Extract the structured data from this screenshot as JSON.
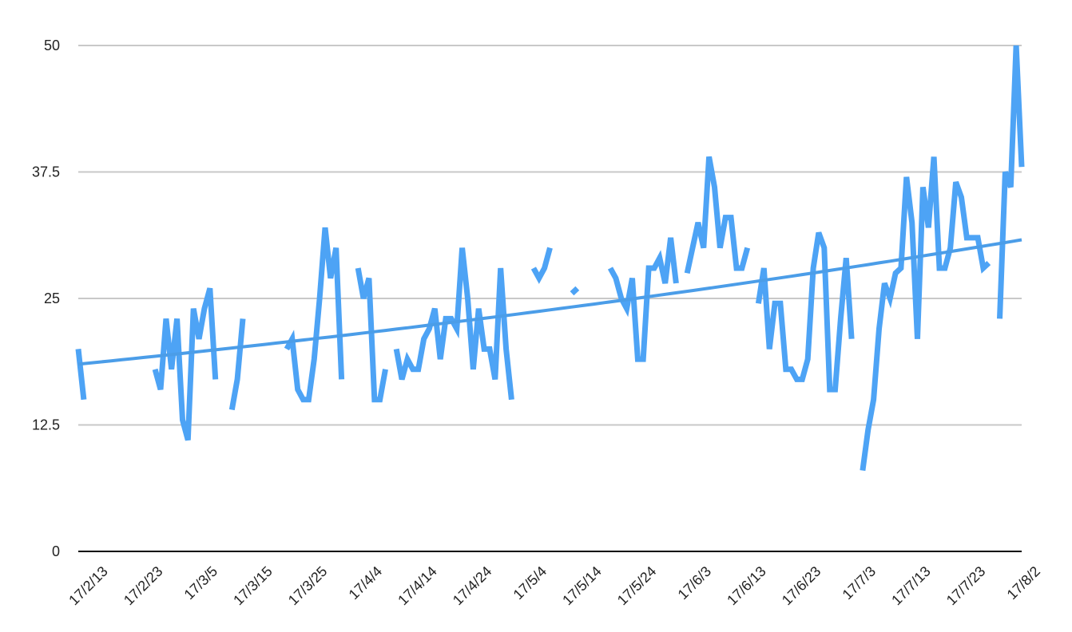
{
  "chart_data": {
    "type": "line",
    "title": "",
    "xlabel": "",
    "ylabel": "",
    "ylim": [
      0,
      50
    ],
    "xlim_days": [
      0,
      171
    ],
    "yticks": [
      "0",
      "12.5",
      "25",
      "37.5",
      "50"
    ],
    "xticks": [
      "17/2/13",
      "17/2/23",
      "17/3/5",
      "17/3/15",
      "17/3/25",
      "17/4/4",
      "17/4/14",
      "17/4/24",
      "17/5/4",
      "17/5/14",
      "17/5/24",
      "17/6/3",
      "17/6/13",
      "17/6/23",
      "17/7/3",
      "17/7/13",
      "17/7/23",
      "17/8/2"
    ],
    "grid": true,
    "legend": "none",
    "colors": {
      "series": "#4da3f5",
      "trend": "#4b9de8",
      "grid": "#c8c8c8",
      "axis": "#000000"
    },
    "series": [
      {
        "segments": [
          [
            [
              0,
              20
            ],
            [
              1,
              15
            ]
          ],
          [
            [
              14,
              18
            ],
            [
              15,
              16
            ],
            [
              16,
              23
            ],
            [
              17,
              18
            ],
            [
              18,
              23
            ],
            [
              19,
              13
            ],
            [
              20,
              11
            ],
            [
              21,
              24
            ],
            [
              22,
              21
            ],
            [
              23,
              24
            ],
            [
              24,
              26
            ],
            [
              25,
              17
            ]
          ],
          [
            [
              28,
              14
            ],
            [
              29,
              17
            ],
            [
              30,
              23
            ]
          ],
          [
            [
              38,
              20
            ],
            [
              39,
              21
            ],
            [
              40,
              16
            ],
            [
              41,
              15
            ],
            [
              42,
              15
            ],
            [
              43,
              19
            ],
            [
              44,
              25
            ],
            [
              45,
              32
            ],
            [
              46,
              27
            ],
            [
              47,
              30
            ],
            [
              48,
              17
            ]
          ],
          [
            [
              51,
              28
            ],
            [
              52,
              25
            ],
            [
              53,
              27
            ],
            [
              54,
              15
            ],
            [
              55,
              15
            ],
            [
              56,
              18
            ]
          ],
          [
            [
              58,
              20
            ],
            [
              59,
              17
            ],
            [
              60,
              19
            ],
            [
              61,
              18
            ],
            [
              62,
              18
            ],
            [
              63,
              21
            ],
            [
              64,
              22
            ],
            [
              65,
              24
            ],
            [
              66,
              19
            ],
            [
              67,
              23
            ],
            [
              68,
              23
            ],
            [
              69,
              22
            ],
            [
              70,
              30
            ],
            [
              71,
              25
            ],
            [
              72,
              18
            ],
            [
              73,
              24
            ],
            [
              74,
              20
            ],
            [
              75,
              20
            ],
            [
              76,
              17
            ],
            [
              77,
              28
            ],
            [
              78,
              20
            ],
            [
              79,
              15
            ]
          ],
          [
            [
              83,
              28
            ],
            [
              84,
              27
            ],
            [
              85,
              28
            ],
            [
              86,
              30
            ]
          ],
          [
            [
              90,
              25.5
            ],
            [
              91,
              26
            ]
          ],
          [
            [
              97,
              28
            ],
            [
              98,
              27
            ],
            [
              99,
              25
            ],
            [
              100,
              24
            ],
            [
              101,
              27
            ],
            [
              102,
              19
            ],
            [
              103,
              19
            ],
            [
              104,
              28
            ],
            [
              105,
              28
            ],
            [
              106,
              29
            ],
            [
              107,
              26.5
            ],
            [
              108,
              31
            ],
            [
              109,
              26.5
            ]
          ],
          [
            [
              111,
              27.5
            ],
            [
              112,
              30
            ],
            [
              113,
              32.5
            ],
            [
              114,
              30
            ],
            [
              115,
              39
            ],
            [
              116,
              36
            ],
            [
              117,
              30
            ],
            [
              118,
              33
            ],
            [
              119,
              33
            ],
            [
              120,
              28
            ],
            [
              121,
              28
            ],
            [
              122,
              30
            ]
          ],
          [
            [
              124,
              24.5
            ],
            [
              125,
              28
            ],
            [
              126,
              20
            ],
            [
              127,
              24.5
            ],
            [
              128,
              24.5
            ],
            [
              129,
              18
            ],
            [
              130,
              18
            ],
            [
              131,
              17
            ],
            [
              132,
              17
            ],
            [
              133,
              19
            ],
            [
              134,
              28
            ],
            [
              135,
              31.5
            ],
            [
              136,
              30
            ],
            [
              137,
              16
            ],
            [
              138,
              16
            ],
            [
              139,
              23
            ],
            [
              140,
              29
            ],
            [
              141,
              21
            ]
          ],
          [
            [
              143,
              8
            ],
            [
              144,
              12
            ],
            [
              145,
              15
            ],
            [
              146,
              22
            ],
            [
              147,
              26.5
            ],
            [
              148,
              25
            ],
            [
              149,
              27.5
            ],
            [
              150,
              28
            ],
            [
              151,
              37
            ],
            [
              152,
              32.5
            ],
            [
              153,
              21
            ],
            [
              154,
              36
            ],
            [
              155,
              32
            ],
            [
              156,
              39
            ],
            [
              157,
              28
            ],
            [
              158,
              28
            ],
            [
              159,
              30
            ],
            [
              160,
              36.5
            ],
            [
              161,
              35
            ],
            [
              162,
              31
            ],
            [
              163,
              31
            ],
            [
              164,
              31
            ],
            [
              165,
              28
            ],
            [
              166,
              28.5
            ]
          ],
          [
            [
              168,
              23
            ],
            [
              169,
              37.5
            ],
            [
              170,
              36
            ],
            [
              171,
              50
            ],
            [
              172,
              38
            ]
          ]
        ]
      }
    ],
    "trendline": {
      "type": "exponential",
      "start": [
        0,
        18.5
      ],
      "end": [
        172,
        30.8
      ]
    }
  }
}
